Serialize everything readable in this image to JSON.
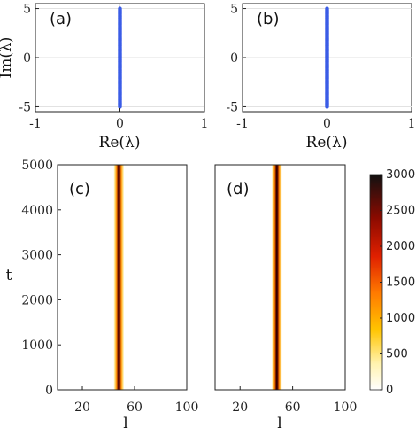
{
  "chart_data": [
    {
      "type": "scatter",
      "panel_label": "(a)",
      "xlabel": "Re(λ)",
      "ylabel": "Im(λ)",
      "xlim": [
        -1,
        1
      ],
      "ylim": [
        -5.5,
        5.5
      ],
      "xticks": [
        "-1",
        "0",
        "1"
      ],
      "yticks": [
        "5",
        "0",
        "-5"
      ],
      "grid": true,
      "color": "#3b5ce6",
      "points": {
        "x": 0,
        "y_from": -5,
        "y_to": 5
      }
    },
    {
      "type": "scatter",
      "panel_label": "(b)",
      "xlabel": "Re(λ)",
      "ylabel": "",
      "xlim": [
        -1,
        1
      ],
      "ylim": [
        -5.5,
        5.5
      ],
      "xticks": [
        "-1",
        "0",
        "1"
      ],
      "yticks": [
        "5",
        "0",
        "-5"
      ],
      "grid": true,
      "color": "#3b5ce6",
      "points": {
        "x": 0,
        "y_from": -5,
        "y_to": 5
      }
    },
    {
      "type": "heatmap",
      "panel_label": "(c)",
      "xlabel": "l",
      "ylabel": "t",
      "xlim": [
        1,
        100
      ],
      "ylim": [
        0,
        5000
      ],
      "xticks": [
        "20",
        "60",
        "100"
      ],
      "yticks": [
        "5000",
        "4000",
        "3000",
        "2000",
        "1000",
        "0"
      ],
      "stripe_center_l": 48,
      "stripe_halfwidth_l": 4
    },
    {
      "type": "heatmap",
      "panel_label": "(d)",
      "xlabel": "l",
      "ylabel": "",
      "xlim": [
        1,
        100
      ],
      "ylim": [
        0,
        5000
      ],
      "xticks": [
        "20",
        "60",
        "100"
      ],
      "yticks": [],
      "stripe_center_l": 48,
      "stripe_halfwidth_l": 4
    }
  ],
  "colorbar": {
    "ticks": [
      "3000",
      "2500",
      "2000",
      "1500",
      "1000",
      "500",
      "0"
    ],
    "range": [
      0,
      3000
    ],
    "colors": [
      "#ffffff",
      "#ffe27a",
      "#ffb000",
      "#ff5a00",
      "#d01a00",
      "#7a0a00",
      "#111111"
    ]
  }
}
